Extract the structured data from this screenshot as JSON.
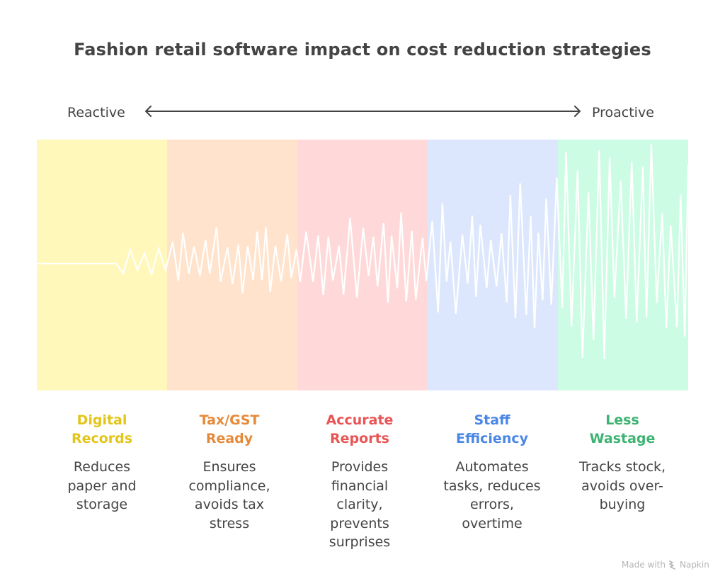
{
  "title": "Fashion retail software impact on cost reduction strategies",
  "axis": {
    "left_label": "Reactive",
    "right_label": "Proactive",
    "arrow_icon": "double-headed-arrow-icon"
  },
  "stages": [
    {
      "title_lines": [
        "Digital",
        "Records"
      ],
      "description_lines": [
        "Reduces",
        "paper and",
        "storage"
      ],
      "band_color": "#FFF8BA",
      "title_color": "#E3C51A"
    },
    {
      "title_lines": [
        "Tax/GST",
        "Ready"
      ],
      "description_lines": [
        "Ensures",
        "compliance,",
        "avoids tax",
        "stress"
      ],
      "band_color": "#FFE3CC",
      "title_color": "#E58A3A"
    },
    {
      "title_lines": [
        "Accurate",
        "Reports"
      ],
      "description_lines": [
        "Provides",
        "financial",
        "clarity,",
        "prevents",
        "surprises"
      ],
      "band_color": "#FFD9D9",
      "title_color": "#E85555"
    },
    {
      "title_lines": [
        "Staff",
        "Efficiency"
      ],
      "description_lines": [
        "Automates",
        "tasks, reduces",
        "errors,",
        "overtime"
      ],
      "band_color": "#DCE7FD",
      "title_color": "#4A86E8"
    },
    {
      "title_lines": [
        "Less",
        "Wastage"
      ],
      "description_lines": [
        "Tracks stock,",
        "avoids over-",
        "buying"
      ],
      "band_color": "#CCFCE3",
      "title_color": "#3CB371"
    }
  ],
  "waveform": {
    "description": "Signal amplitude increasing from reactive (flat) to proactive (large oscillation)",
    "relative_amplitude_by_stage": [
      0.1,
      0.3,
      0.35,
      0.55,
      1.0
    ],
    "line_color": "#FFFFFF"
  },
  "footer": {
    "text": "Made with",
    "brand": "Napkin",
    "brand_icon": "napkin-logo-icon"
  }
}
